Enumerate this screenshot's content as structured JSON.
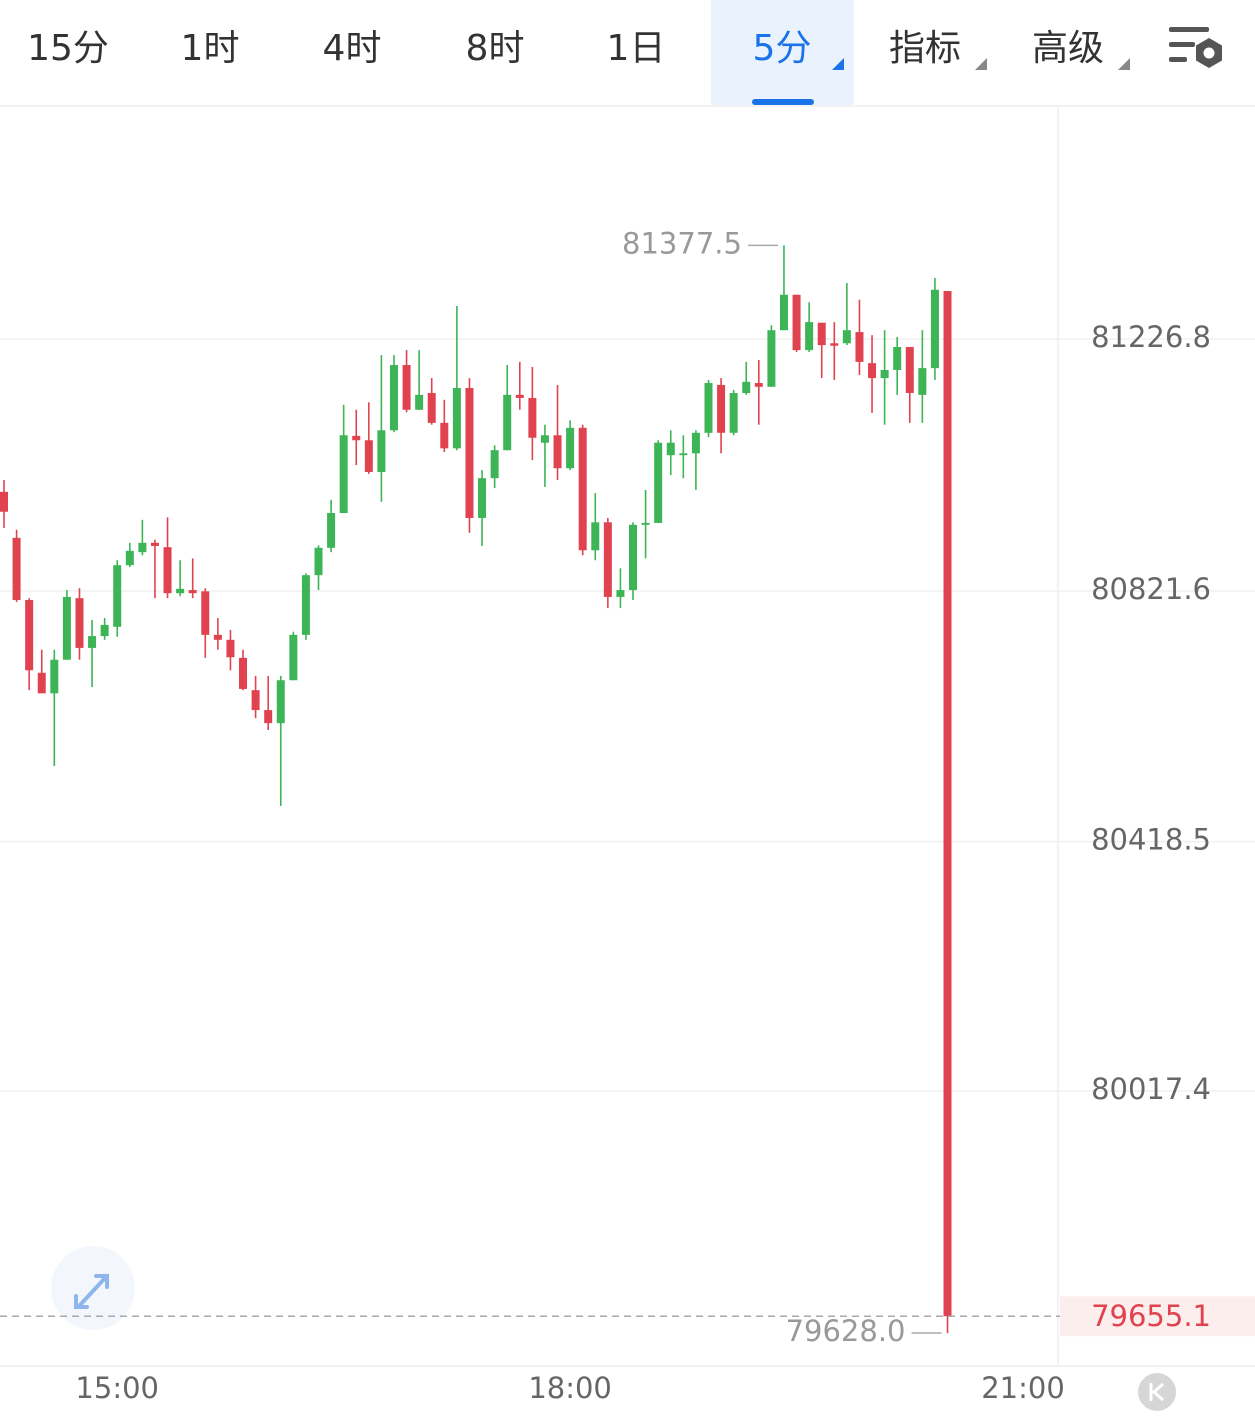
{
  "tabs": [
    {
      "label": "15分"
    },
    {
      "label": "1时"
    },
    {
      "label": "4时"
    },
    {
      "label": "8时"
    },
    {
      "label": "1日"
    },
    {
      "label": "5分",
      "active": true,
      "dropdown": true
    },
    {
      "label": "指标",
      "dropdown": true
    },
    {
      "label": "高级",
      "dropdown": true
    }
  ],
  "chart_data": {
    "type": "candlestick",
    "categories": [
      null,
      null,
      null,
      null,
      null,
      null,
      null,
      null,
      null,
      "15:00",
      null,
      null,
      null,
      null,
      null,
      null,
      null,
      null,
      null,
      null,
      null,
      null,
      null,
      null,
      null,
      null,
      null,
      null,
      null,
      null,
      null,
      null,
      null,
      null,
      null,
      null,
      null,
      null,
      null,
      null,
      null,
      null,
      null,
      null,
      null,
      "18:00",
      null,
      null,
      null,
      null,
      null,
      null,
      null,
      null,
      null,
      null,
      null,
      null,
      null,
      null,
      null,
      null,
      null,
      null,
      null,
      null,
      null,
      null,
      null,
      null,
      null,
      null,
      null,
      null,
      null,
      null,
      null,
      null,
      null,
      null,
      null,
      "21:00"
    ],
    "open": [
      80981,
      80907,
      80807,
      80690,
      80657,
      80711,
      80810,
      80730,
      80749,
      80764,
      80863,
      80884,
      80899,
      80892,
      80818,
      80823,
      80821,
      80751,
      80743,
      80714,
      80662,
      80630,
      80609,
      80678,
      80751,
      80847,
      80891,
      80947,
      81071,
      81064,
      81013,
      81080,
      81185,
      81113,
      81140,
      81092,
      81051,
      81148,
      80939,
      81003,
      81048,
      81137,
      81132,
      81060,
      81072,
      81019,
      81084,
      80887,
      80932,
      80812,
      80823,
      80928,
      80931,
      81040,
      81040,
      81043,
      81076,
      81153,
      81076,
      81140,
      81156,
      81150,
      81241,
      81298,
      81209,
      81253,
      81220,
      81220,
      81238,
      81188,
      81164,
      81177,
      81214,
      81137,
      81180,
      81304,
      null,
      null,
      null,
      null,
      null,
      null
    ],
    "high": [
      81000,
      80920,
      80810,
      80727,
      80727,
      80823,
      80826,
      80775,
      80778,
      80871,
      80899,
      80936,
      80904,
      80940,
      80871,
      80874,
      80826,
      80778,
      80759,
      80727,
      80685,
      80685,
      80685,
      80756,
      80850,
      80895,
      80968,
      81121,
      81113,
      81125,
      81201,
      81201,
      81209,
      81209,
      81164,
      81129,
      81280,
      81164,
      81016,
      81056,
      81185,
      81190,
      81182,
      81089,
      81153,
      81096,
      81089,
      80979,
      80939,
      80858,
      80932,
      80984,
      81064,
      81080,
      81072,
      81080,
      81161,
      81164,
      81145,
      81190,
      81193,
      81249,
      81377.5,
      81298,
      81286,
      81253,
      81254,
      81317,
      81290,
      81233,
      81241,
      81230,
      81214,
      81241,
      81325,
      81304,
      null,
      null,
      null,
      null,
      null,
      null
    ],
    "low": [
      80923,
      80804,
      80662,
      80657,
      80540,
      80711,
      80711,
      80667,
      80743,
      80748,
      80860,
      80879,
      80810,
      80810,
      80813,
      80810,
      80714,
      80727,
      80694,
      80662,
      80617,
      80598,
      80476,
      80678,
      80743,
      80823,
      80884,
      80947,
      81024,
      81010,
      80965,
      81077,
      81109,
      81113,
      81089,
      81045,
      81048,
      80915,
      80894,
      80987,
      81048,
      81113,
      81032,
      80989,
      81000,
      81016,
      80879,
      80871,
      80794,
      80794,
      80807,
      80874,
      80931,
      81008,
      81003,
      80984,
      81069,
      81043,
      81072,
      81137,
      81089,
      81150,
      81241,
      81206,
      81206,
      81164,
      81161,
      81217,
      81169,
      81108,
      81089,
      81137,
      81092,
      81092,
      81161,
      79628.0,
      null,
      null,
      null,
      null,
      null,
      null
    ],
    "close": [
      80949,
      80807,
      80694,
      80657,
      80711,
      80812,
      80730,
      80749,
      80767,
      80863,
      80886,
      80899,
      80894,
      80818,
      80825,
      80818,
      80751,
      80743,
      80715,
      80664,
      80630,
      80609,
      80678,
      80751,
      80847,
      80891,
      80947,
      81072,
      81064,
      81013,
      81080,
      81185,
      81113,
      81137,
      81092,
      81051,
      81148,
      80939,
      81003,
      81048,
      81137,
      81132,
      81068,
      81072,
      81019,
      81084,
      80887,
      80932,
      80812,
      80823,
      80928,
      80931,
      81060,
      81060,
      81043,
      81076,
      81156,
      81076,
      81140,
      81158,
      81150,
      81241,
      81298,
      81209,
      81254,
      81217,
      81216,
      81241,
      81190,
      81164,
      81177,
      81214,
      81140,
      81180,
      81306,
      79655.1,
      null,
      null,
      null,
      null,
      null,
      null
    ],
    "up_color": "#3db456",
    "down_color": "#e0434f",
    "ylim": [
      79575,
      81600
    ],
    "yticks": [
      80017.4,
      80418.5,
      80821.6,
      81226.8
    ],
    "grid": true,
    "annotations": [
      {
        "value": 81377.5,
        "label": "81377.5"
      },
      {
        "value": 79628.0,
        "label": "79628.0"
      }
    ],
    "last_price": {
      "value": 79655.1,
      "label": "79655.1"
    }
  }
}
